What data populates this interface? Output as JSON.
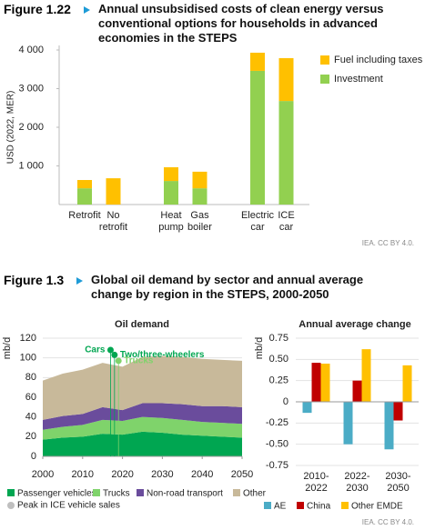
{
  "figures": [
    {
      "label": "Figure 1.22",
      "title": "Annual unsubsidised costs of clean energy versus conventional options for households in advanced economies in the STEPS",
      "source": "IEA. CC BY 4.0."
    },
    {
      "label": "Figure 1.3",
      "title": "Global oil demand by sector and annual average change by region in the STEPS, 2000-2050",
      "source": "IEA. CC BY 4.0."
    }
  ],
  "chart_data": [
    {
      "type": "stacked_bar",
      "y_label": "USD (2022, MER)",
      "categories": [
        [
          "Retrofit"
        ],
        [
          "No",
          "retrofit"
        ],
        [
          "Heat",
          "pump"
        ],
        [
          "Gas",
          "boiler"
        ],
        [
          "Electric",
          "car"
        ],
        [
          "ICE",
          "car"
        ]
      ],
      "series": [
        {
          "name": "Investment",
          "color": "#92d050",
          "values": [
            420,
            0,
            610,
            420,
            3460,
            2680
          ]
        },
        {
          "name": "Fuel including taxes",
          "color": "#ffc000",
          "values": [
            215,
            680,
            355,
            430,
            470,
            1110
          ]
        }
      ],
      "ylim": [
        0,
        4000
      ],
      "yticks": [
        {
          "value": 1000,
          "label": "1 000"
        },
        {
          "value": 2000,
          "label": "2 000"
        },
        {
          "value": 3000,
          "label": "3 000"
        },
        {
          "value": 4000,
          "label": "4 000"
        }
      ],
      "legend": "right"
    },
    {
      "type": "stacked_area",
      "title": "Oil demand",
      "y_label": "mb/d",
      "x": [
        2000,
        2005,
        2010,
        2015,
        2020,
        2025,
        2030,
        2035,
        2040,
        2045,
        2050
      ],
      "series": [
        {
          "name": "Passenger vehicles",
          "color": "#00a651",
          "values": [
            17,
            19,
            20,
            23,
            22,
            25,
            24,
            22,
            21,
            20,
            19
          ]
        },
        {
          "name": "Trucks",
          "color": "#7fd36b",
          "values": [
            10,
            11,
            12,
            14,
            14,
            15,
            15,
            15,
            14,
            14,
            14
          ]
        },
        {
          "name": "Non-road transport",
          "color": "#6a4c9c",
          "values": [
            10,
            11,
            11,
            13,
            11,
            14,
            15,
            16,
            16,
            17,
            17
          ]
        },
        {
          "name": "Other",
          "color": "#c8b99a",
          "values": [
            40,
            43,
            45,
            45,
            44,
            47,
            48,
            48,
            48,
            47,
            47
          ]
        }
      ],
      "xlim": [
        2000,
        2050
      ],
      "xticks": [
        2000,
        2010,
        2020,
        2030,
        2040,
        2050
      ],
      "ylim": [
        0,
        120
      ],
      "yticks": [
        0,
        20,
        40,
        60,
        80,
        100,
        120
      ],
      "grid": true,
      "peaks": {
        "name": "Peak in ICE vehicle sales",
        "color": "#bfbfbf",
        "points": [
          {
            "label": "Cars",
            "x": 2017,
            "y": 108,
            "color": "#00a651"
          },
          {
            "label": "Two/three-wheelers",
            "x": 2018,
            "y": 103,
            "color": "#00a651"
          },
          {
            "label": "Trucks",
            "x": 2019,
            "y": 97,
            "color": "#7fd36b"
          }
        ]
      }
    },
    {
      "type": "grouped_bar",
      "title": "Annual average change",
      "y_label": "mb/d",
      "categories": [
        [
          "2010-",
          "2022"
        ],
        [
          "2022-",
          "2030"
        ],
        [
          "2030-",
          "2050"
        ]
      ],
      "series": [
        {
          "name": "AE",
          "color": "#4bacc6",
          "values": [
            -0.13,
            -0.5,
            -0.56
          ]
        },
        {
          "name": "China",
          "color": "#c00000",
          "values": [
            0.46,
            0.25,
            -0.22
          ]
        },
        {
          "name": "Other EMDE",
          "color": "#ffc000",
          "values": [
            0.45,
            0.62,
            0.43
          ]
        }
      ],
      "ylim": [
        -0.75,
        0.75
      ],
      "yticks": [
        -0.75,
        {
          "value": -0.5,
          "label": "-0.50"
        },
        -0.25,
        0,
        0.25,
        {
          "value": 0.5,
          "label": "0.50"
        },
        0.75
      ],
      "grid": true
    }
  ]
}
